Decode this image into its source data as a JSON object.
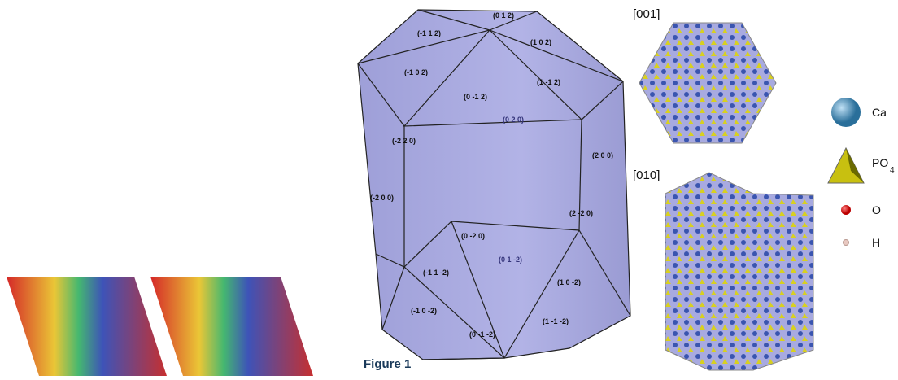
{
  "morphology": {
    "faces": [
      "(0 1 2)",
      "(-1 1 2)",
      "(1 0 2)",
      "(-1 0 2)",
      "(1 -1 2)",
      "(0 -1 2)",
      "(0 2 0)",
      "(-2 2 0)",
      "(2 0 0)",
      "(-2 0 0)",
      "(2 -2 0)",
      "(0 -2 0)",
      "(0 1 -2)",
      "(-1 1 -2)",
      "(1 0 -2)",
      "(-1 0 -2)",
      "(1 -1 -2)",
      "(0 -1 -2)"
    ]
  },
  "projections": [
    "[001]",
    "[010]"
  ],
  "legend": [
    {
      "label": "Ca"
    },
    {
      "label": "PO",
      "subscript": "4"
    },
    {
      "label": "O"
    },
    {
      "label": "H"
    }
  ],
  "caption": "Figure 1"
}
